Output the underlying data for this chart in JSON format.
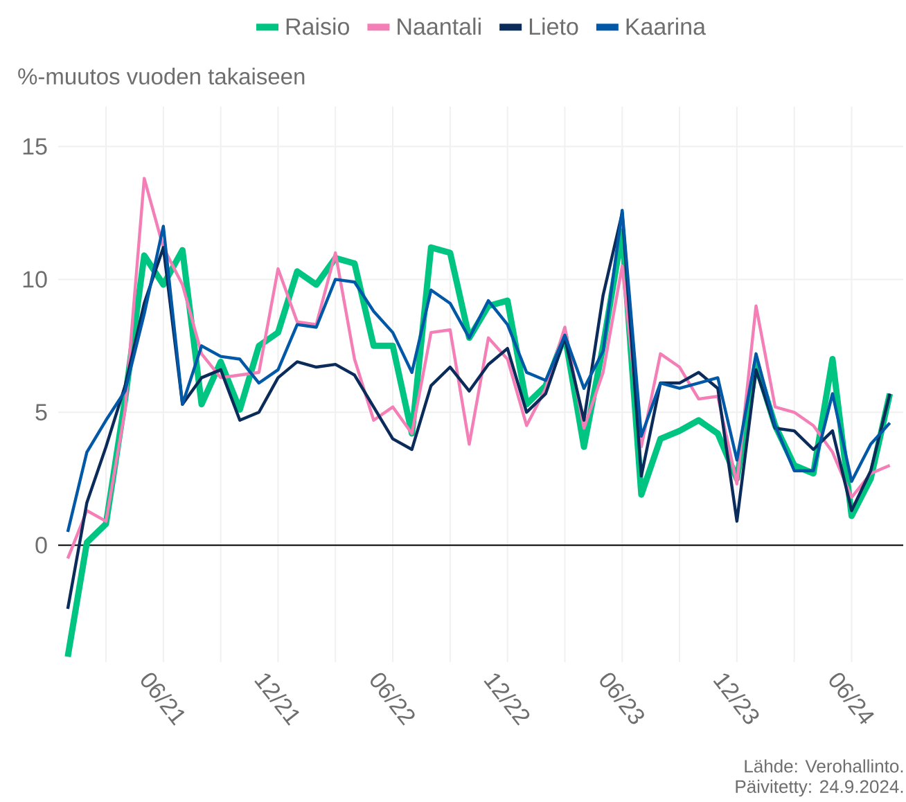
{
  "chart_data": {
    "type": "line",
    "ylabel": "%-muutos vuoden takaiseen",
    "x": [
      "2021-01",
      "2021-02",
      "2021-03",
      "2021-04",
      "2021-05",
      "2021-06",
      "2021-07",
      "2021-08",
      "2021-09",
      "2021-10",
      "2021-11",
      "2021-12",
      "2022-01",
      "2022-02",
      "2022-03",
      "2022-04",
      "2022-05",
      "2022-06",
      "2022-07",
      "2022-08",
      "2022-09",
      "2022-10",
      "2022-11",
      "2022-12",
      "2023-01",
      "2023-02",
      "2023-03",
      "2023-04",
      "2023-05",
      "2023-06",
      "2023-07",
      "2023-08",
      "2023-09",
      "2023-10",
      "2023-11",
      "2023-12",
      "2024-01",
      "2024-02",
      "2024-03",
      "2024-04",
      "2024-05",
      "2024-06",
      "2024-07",
      "2024-08"
    ],
    "series": [
      {
        "name": "Raisio",
        "color": "#00c482",
        "values": [
          -4.2,
          0.1,
          0.8,
          5.5,
          10.9,
          9.8,
          11.1,
          5.3,
          6.9,
          5.1,
          7.5,
          8.0,
          10.3,
          9.8,
          10.8,
          10.6,
          7.5,
          7.5,
          4.2,
          11.2,
          11.0,
          7.8,
          9.0,
          9.2,
          5.3,
          6.0,
          7.9,
          3.7,
          7.5,
          11.8,
          1.9,
          4.0,
          4.3,
          4.7,
          4.2,
          2.5,
          6.8,
          4.5,
          3.0,
          2.7,
          7.0,
          1.1,
          2.5,
          5.7
        ]
      },
      {
        "name": "Naantali",
        "color": "#f47fb6",
        "values": [
          -0.5,
          1.3,
          0.9,
          5.1,
          13.8,
          11.2,
          9.8,
          7.2,
          6.3,
          6.4,
          6.5,
          10.4,
          8.4,
          8.3,
          11.0,
          7.0,
          4.7,
          5.2,
          4.2,
          8.0,
          8.1,
          3.8,
          7.8,
          7.0,
          4.5,
          5.9,
          8.2,
          4.4,
          6.5,
          10.5,
          3.7,
          7.2,
          6.7,
          5.5,
          5.6,
          2.3,
          9.0,
          5.2,
          5.0,
          4.5,
          3.5,
          1.8,
          2.7,
          3.0
        ]
      },
      {
        "name": "Lieto",
        "color": "#0b2c5b",
        "values": [
          -2.4,
          1.6,
          3.7,
          6.0,
          9.1,
          11.2,
          5.3,
          6.3,
          6.6,
          4.7,
          5.0,
          6.3,
          6.9,
          6.7,
          6.8,
          6.4,
          5.2,
          4.0,
          3.6,
          6.0,
          6.7,
          5.8,
          6.8,
          7.4,
          5.0,
          5.7,
          7.8,
          4.7,
          9.4,
          12.5,
          2.6,
          6.1,
          6.1,
          6.5,
          5.9,
          0.9,
          6.6,
          4.4,
          4.3,
          3.6,
          4.3,
          1.3,
          2.8,
          5.7
        ]
      },
      {
        "name": "Kaarina",
        "color": "#0058a6",
        "values": [
          0.5,
          3.5,
          4.7,
          5.8,
          8.7,
          12.0,
          5.3,
          7.5,
          7.1,
          7.0,
          6.1,
          6.6,
          8.3,
          8.2,
          10.0,
          9.9,
          8.8,
          8.0,
          6.5,
          9.6,
          9.1,
          7.8,
          9.2,
          8.3,
          6.5,
          6.2,
          7.9,
          5.9,
          7.3,
          12.6,
          4.1,
          6.1,
          5.9,
          6.1,
          6.3,
          3.2,
          7.2,
          4.5,
          2.8,
          2.8,
          5.7,
          2.4,
          3.8,
          4.6
        ]
      }
    ],
    "xlim": [
      "2020-12-16",
      "2024-08-22"
    ],
    "xticks": [
      {
        "value": "2021-03",
        "label": null
      },
      {
        "value": "2021-06",
        "label": "06/21"
      },
      {
        "value": "2021-09",
        "label": null
      },
      {
        "value": "2021-12",
        "label": "12/21"
      },
      {
        "value": "2022-03",
        "label": null
      },
      {
        "value": "2022-06",
        "label": "06/22"
      },
      {
        "value": "2022-09",
        "label": null
      },
      {
        "value": "2022-12",
        "label": "12/22"
      },
      {
        "value": "2023-03",
        "label": null
      },
      {
        "value": "2023-06",
        "label": "06/23"
      },
      {
        "value": "2023-09",
        "label": null
      },
      {
        "value": "2023-12",
        "label": "12/23"
      },
      {
        "value": "2024-03",
        "label": null
      },
      {
        "value": "2024-06",
        "label": "06/24"
      }
    ],
    "ylim": [
      -4.4,
      16.5
    ],
    "yticks": [
      0,
      5,
      10,
      15
    ],
    "ref_lines": [
      {
        "axis": "y",
        "value": 0,
        "color": "#000000"
      }
    ],
    "grid": true,
    "legend": "top",
    "annotations": [
      "Lähde: Verohallinto.",
      "Päivitetty: 24.9.2024."
    ]
  }
}
